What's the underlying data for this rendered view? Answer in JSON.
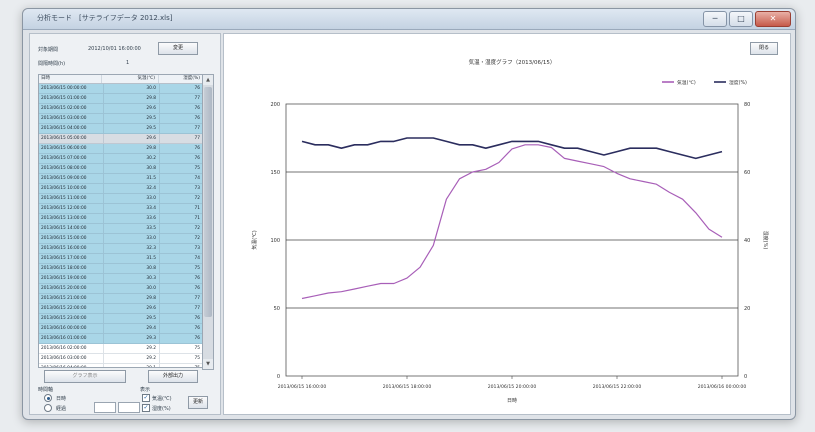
{
  "window": {
    "title": "分析モード　[サテライフデータ 2012.xls]",
    "min": "─",
    "max": "□",
    "close": "✕"
  },
  "left": {
    "period_label": "対象期間",
    "period_value": "2012/10/01 16:00:00",
    "period_button": "変更",
    "interval_label": "間隔時間(h)",
    "interval_value": "1",
    "columns": [
      "日時",
      "気温(℃)",
      "湿度(%)"
    ],
    "rows": [
      [
        "2013/06/15 00:00:00",
        "30.0",
        "76"
      ],
      [
        "2013/06/15 01:00:00",
        "29.8",
        "77"
      ],
      [
        "2013/06/15 02:00:00",
        "29.6",
        "76"
      ],
      [
        "2013/06/15 03:00:00",
        "29.5",
        "76"
      ],
      [
        "2013/06/15 04:00:00",
        "29.5",
        "77"
      ],
      [
        "2013/06/15 05:00:00",
        "29.6",
        "77"
      ],
      [
        "2013/06/15 06:00:00",
        "29.8",
        "76"
      ],
      [
        "2013/06/15 07:00:00",
        "30.2",
        "76"
      ],
      [
        "2013/06/15 08:00:00",
        "30.8",
        "75"
      ],
      [
        "2013/06/15 09:00:00",
        "31.5",
        "74"
      ],
      [
        "2013/06/15 10:00:00",
        "32.4",
        "73"
      ],
      [
        "2013/06/15 11:00:00",
        "33.0",
        "72"
      ],
      [
        "2013/06/15 12:00:00",
        "33.4",
        "71"
      ],
      [
        "2013/06/15 13:00:00",
        "33.6",
        "71"
      ],
      [
        "2013/06/15 14:00:00",
        "33.5",
        "72"
      ],
      [
        "2013/06/15 15:00:00",
        "33.0",
        "72"
      ],
      [
        "2013/06/15 16:00:00",
        "32.3",
        "73"
      ],
      [
        "2013/06/15 17:00:00",
        "31.5",
        "74"
      ],
      [
        "2013/06/15 18:00:00",
        "30.8",
        "75"
      ],
      [
        "2013/06/15 19:00:00",
        "30.3",
        "76"
      ],
      [
        "2013/06/15 20:00:00",
        "30.0",
        "76"
      ],
      [
        "2013/06/15 21:00:00",
        "29.8",
        "77"
      ],
      [
        "2013/06/15 22:00:00",
        "29.6",
        "77"
      ],
      [
        "2013/06/15 23:00:00",
        "29.5",
        "76"
      ],
      [
        "2013/06/16 00:00:00",
        "29.4",
        "76"
      ],
      [
        "2013/06/16 01:00:00",
        "29.3",
        "76"
      ],
      [
        "2013/06/16 02:00:00",
        "29.2",
        "75"
      ],
      [
        "2013/06/16 03:00:00",
        "29.2",
        "75"
      ],
      [
        "2013/06/16 04:00:00",
        "29.1",
        "75"
      ],
      [
        "2013/06/16 05:00:00",
        "29.1",
        "76"
      ],
      [
        "2013/06/16 06:00:00",
        "29.2",
        "76"
      ],
      [
        "2013/06/16 07:00:00",
        "29.4",
        "76"
      ]
    ],
    "selected_rows_through": 25,
    "current_row": 5,
    "button_a": "グラフ表示",
    "button_b": "外部出力",
    "group_interval": "時間軸",
    "radio_a": "日時",
    "radio_b": "経過",
    "group_series": "表示",
    "check_a": "気温(℃)",
    "check_b": "湿度(%)",
    "apply_button": "更新"
  },
  "chart_panel": {
    "close_button": "閉る"
  },
  "chart_data": {
    "type": "line",
    "title": "気温・湿度グラフ（2013/06/15）",
    "xlabel": "日時",
    "ylabel_left": "気温(℃)",
    "ylabel_right": "湿度(%)",
    "x_tick_labels": [
      "2013/06/15 16:00:00",
      "2013/06/15 18:00:00",
      "2013/06/15 20:00:00",
      "2013/06/15 22:00:00",
      "2013/06/16 00:00:00"
    ],
    "ylim_left": [
      0,
      200
    ],
    "ylim_right": [
      0,
      80
    ],
    "y_ticks_left": [
      "0",
      "50",
      "100",
      "150",
      "200"
    ],
    "y_ticks_right": [
      "0",
      "20",
      "40",
      "60",
      "80"
    ],
    "grid": "horizontal",
    "legend_position": "top-right",
    "series": [
      {
        "name": "気温(℃)",
        "color": "#a85fb8",
        "axis": "left",
        "values": [
          57,
          59,
          61,
          62,
          64,
          66,
          68,
          68,
          72,
          80,
          96,
          130,
          145,
          150,
          152,
          157,
          167,
          170,
          170,
          168,
          160,
          158,
          156,
          154,
          149,
          145,
          143,
          141,
          135,
          130,
          120,
          108,
          102
        ]
      },
      {
        "name": "湿度(%)",
        "color": "#2b2d5e",
        "axis": "right",
        "values": [
          69,
          68,
          68,
          67,
          68,
          68,
          69,
          69,
          70,
          70,
          70,
          69,
          68,
          68,
          67,
          68,
          69,
          69,
          69,
          68,
          67,
          67,
          66,
          65,
          66,
          67,
          67,
          67,
          66,
          65,
          64,
          65,
          66
        ]
      }
    ]
  }
}
